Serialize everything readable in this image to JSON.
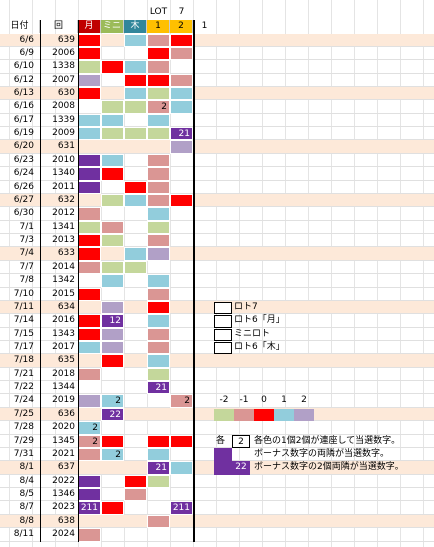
{
  "header": {
    "top": [
      "LOT",
      "7"
    ],
    "columns": [
      "日付",
      "回",
      "月",
      "ミニ",
      "木",
      "1",
      "2"
    ],
    "extra": "1",
    "column_colors": [
      null,
      null,
      "#c00000",
      "#9bbb59",
      "#31869b",
      "#ffc000",
      "#ffc000"
    ]
  },
  "rows": [
    {
      "date": "6/6",
      "round": 639,
      "shaded": true,
      "cells": [
        "#ff0000",
        null,
        "#92cddc",
        "#da9694",
        "#ff0000"
      ]
    },
    {
      "date": "6/9",
      "round": 2006,
      "cells": [
        "#ff0000",
        null,
        null,
        "#ff0000",
        "#da9694"
      ]
    },
    {
      "date": "6/10",
      "round": 1338,
      "cells": [
        "#c4d79b",
        "#ff0000",
        "#92cddc",
        "#da9694",
        null
      ]
    },
    {
      "date": "6/12",
      "round": 2007,
      "cells": [
        "#b1a0c7",
        null,
        "#ff0000",
        "#ff0000",
        "#da9694"
      ]
    },
    {
      "date": "6/13",
      "round": 630,
      "shaded": true,
      "cells": [
        "#ff0000",
        null,
        "#92cddc",
        "#c4d79b",
        "#92cddc"
      ]
    },
    {
      "date": "6/16",
      "round": 2008,
      "cells": [
        null,
        "#c4d79b",
        "#c4d79b",
        {
          "color": "#da9694",
          "text": 2
        },
        "#92cddc"
      ]
    },
    {
      "date": "6/17",
      "round": 1339,
      "cells": [
        "#92cddc",
        "#92cddc",
        null,
        "#92cddc",
        null
      ]
    },
    {
      "date": "6/19",
      "round": 2009,
      "cells": [
        "#92cddc",
        "#c4d79b",
        "#c4d79b",
        "#c4d79b",
        {
          "color": "#7030a0",
          "text": 21
        }
      ]
    },
    {
      "date": "6/20",
      "round": 631,
      "shaded": true,
      "cells": [
        null,
        null,
        null,
        null,
        "#b1a0c7"
      ]
    },
    {
      "date": "6/23",
      "round": 2010,
      "cells": [
        "#7030a0",
        "#92cddc",
        null,
        "#da9694",
        null
      ]
    },
    {
      "date": "6/24",
      "round": 1340,
      "cells": [
        "#7030a0",
        "#ff0000",
        null,
        "#da9694",
        null
      ]
    },
    {
      "date": "6/26",
      "round": 2011,
      "cells": [
        "#7030a0",
        null,
        "#ff0000",
        "#da9694",
        null
      ]
    },
    {
      "date": "6/27",
      "round": 632,
      "shaded": true,
      "cells": [
        null,
        "#c4d79b",
        "#92cddc",
        "#da9694",
        "#ff0000"
      ]
    },
    {
      "date": "6/30",
      "round": 2012,
      "cells": [
        "#da9694",
        null,
        null,
        "#92cddc",
        null
      ]
    },
    {
      "date": "7/1",
      "round": 1341,
      "cells": [
        "#c4d79b",
        "#da9694",
        null,
        "#c4d79b",
        null
      ]
    },
    {
      "date": "7/3",
      "round": 2013,
      "cells": [
        "#ff0000",
        "#c4d79b",
        null,
        "#da9694",
        null
      ]
    },
    {
      "date": "7/4",
      "round": 633,
      "shaded": true,
      "cells": [
        "#ff0000",
        null,
        "#92cddc",
        "#b1a0c7",
        null
      ]
    },
    {
      "date": "7/7",
      "round": 2014,
      "cells": [
        "#da9694",
        "#c4d79b",
        "#c4d79b",
        null,
        null
      ]
    },
    {
      "date": "7/8",
      "round": 1342,
      "cells": [
        null,
        "#92cddc",
        null,
        "#92cddc",
        null
      ]
    },
    {
      "date": "7/10",
      "round": 2015,
      "cells": [
        "#ff0000",
        null,
        null,
        "#da9694",
        null
      ]
    },
    {
      "date": "7/11",
      "round": 634,
      "shaded": true,
      "cells": [
        null,
        "#b1a0c7",
        null,
        "#ff0000",
        null
      ]
    },
    {
      "date": "7/14",
      "round": 2016,
      "cells": [
        "#ff0000",
        {
          "color": "#7030a0",
          "text": 12
        },
        null,
        "#92cddc",
        null
      ]
    },
    {
      "date": "7/15",
      "round": 1343,
      "cells": [
        "#ff0000",
        "#b1a0c7",
        null,
        "#da9694",
        null
      ]
    },
    {
      "date": "7/17",
      "round": 2017,
      "cells": [
        "#92cddc",
        "#b1a0c7",
        null,
        "#da9694",
        null
      ]
    },
    {
      "date": "7/18",
      "round": 635,
      "shaded": true,
      "cells": [
        null,
        "#ff0000",
        null,
        "#92cddc",
        null
      ]
    },
    {
      "date": "7/21",
      "round": 2018,
      "cells": [
        "#da9694",
        null,
        null,
        "#c4d79b",
        null
      ]
    },
    {
      "date": "7/22",
      "round": 1344,
      "cells": [
        null,
        null,
        null,
        {
          "color": "#7030a0",
          "text": 21
        },
        null
      ]
    },
    {
      "date": "7/24",
      "round": 2019,
      "cells": [
        "#b1a0c7",
        {
          "color": "#92cddc",
          "text": 2
        },
        null,
        null,
        {
          "color": "#da9694",
          "text": 2
        }
      ]
    },
    {
      "date": "7/25",
      "round": 636,
      "shaded": true,
      "cells": [
        null,
        {
          "color": "#7030a0",
          "text": 22
        },
        null,
        null,
        null
      ]
    },
    {
      "date": "7/28",
      "round": 2020,
      "cells": [
        {
          "color": "#92cddc",
          "text": 2
        },
        null,
        null,
        null,
        null
      ]
    },
    {
      "date": "7/29",
      "round": 1345,
      "cells": [
        {
          "color": "#da9694",
          "text": 2
        },
        "#ff0000",
        null,
        "#ff0000",
        "#ff0000"
      ]
    },
    {
      "date": "7/31",
      "round": 2021,
      "cells": [
        "#da9694",
        {
          "color": "#92cddc",
          "text": 2
        },
        null,
        "#92cddc",
        null
      ]
    },
    {
      "date": "8/1",
      "round": 637,
      "shaded": true,
      "cells": [
        null,
        null,
        null,
        {
          "color": "#7030a0",
          "text": 21
        },
        "#92cddc"
      ]
    },
    {
      "date": "8/4",
      "round": 2022,
      "cells": [
        "#7030a0",
        null,
        "#ff0000",
        "#c4d79b",
        null
      ]
    },
    {
      "date": "8/5",
      "round": 1346,
      "cells": [
        "#7030a0",
        null,
        "#da9694",
        null,
        null
      ]
    },
    {
      "date": "8/7",
      "round": 2023,
      "cells": [
        {
          "color": "#7030a0",
          "text": 211
        },
        "#ff0000",
        null,
        null,
        {
          "color": "#7030a0",
          "text": 211
        }
      ]
    },
    {
      "date": "8/8",
      "round": 638,
      "shaded": true,
      "cells": [
        null,
        null,
        null,
        "#da9694",
        null
      ]
    },
    {
      "date": "8/11",
      "round": 2024,
      "cells": [
        "#da9694",
        null,
        null,
        null,
        null
      ]
    }
  ],
  "legend": {
    "games": [
      "ロト7",
      "ロト6「月」",
      "ミニロト",
      "ロト6「木」"
    ],
    "scale": [
      {
        "value": -2,
        "color": "#c4d79b"
      },
      {
        "value": -1,
        "color": "#da9694"
      },
      {
        "value": 0,
        "color": "#ff0000"
      },
      {
        "value": 1,
        "color": "#92cddc"
      },
      {
        "value": 2,
        "color": "#b1a0c7"
      }
    ],
    "notes": [
      {
        "prefix": "各",
        "box": 2,
        "text": "各色の1個2個が連座して当選数字。"
      },
      {
        "color": "#7030a0",
        "text": "ボーナス数字の両隣が当選数字。"
      },
      {
        "color": "#7030a0",
        "box": 22,
        "text": "ボーナス数字の2個両隣が当選数字。"
      }
    ]
  }
}
